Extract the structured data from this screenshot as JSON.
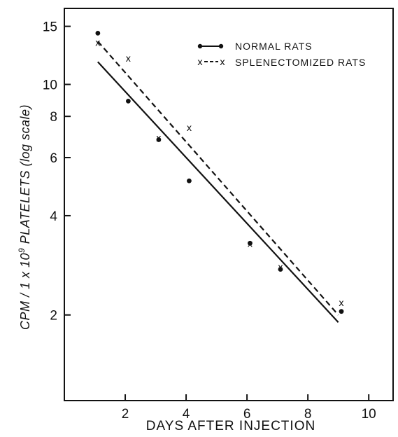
{
  "chart_data": {
    "type": "scatter",
    "title": "",
    "xlabel": "DAYS AFTER INJECTION",
    "ylabel": "CPM / 1 x 10^9 PLATELETS  (log scale)",
    "ylabel_parts": {
      "pre": "CPM / 1 x 10",
      "sup": "9",
      "post": " PLATELETS  (log scale)"
    },
    "yscale": "log",
    "xlim": [
      0,
      10.8
    ],
    "ylim": [
      1.1,
      17
    ],
    "x_ticks": [
      2,
      4,
      6,
      8,
      10
    ],
    "x_tick_labels": [
      "2",
      "4",
      "6",
      "8",
      "10"
    ],
    "y_ticks": [
      2,
      4,
      6,
      8,
      10,
      15
    ],
    "y_tick_labels": [
      "2",
      "4",
      "6",
      "8",
      "10",
      "15"
    ],
    "grid": false,
    "legend_position": "top-right",
    "series": [
      {
        "name": "NORMAL RATS",
        "legend_label": "NORMAL RATS",
        "marker": "dot",
        "line_style": "solid",
        "color": "#111111",
        "points": [
          {
            "x": 1.1,
            "y": 14.3
          },
          {
            "x": 2.1,
            "y": 8.9
          },
          {
            "x": 3.1,
            "y": 6.8
          },
          {
            "x": 4.1,
            "y": 5.1
          },
          {
            "x": 6.1,
            "y": 3.3
          },
          {
            "x": 7.1,
            "y": 2.75
          },
          {
            "x": 9.1,
            "y": 2.05
          }
        ],
        "fit": [
          {
            "x": 1.1,
            "y": 11.7
          },
          {
            "x": 9.0,
            "y": 1.9
          }
        ]
      },
      {
        "name": "SPLENECTOMIZED RATS",
        "legend_label": "SPLENECTOMIZED RATS",
        "marker": "x",
        "line_style": "dashed",
        "color": "#111111",
        "points": [
          {
            "x": 1.1,
            "y": 13.4
          },
          {
            "x": 2.1,
            "y": 12.0
          },
          {
            "x": 3.1,
            "y": 6.9
          },
          {
            "x": 4.1,
            "y": 7.4
          },
          {
            "x": 6.1,
            "y": 3.3
          },
          {
            "x": 7.1,
            "y": 2.8
          },
          {
            "x": 9.1,
            "y": 2.18
          }
        ],
        "fit": [
          {
            "x": 1.1,
            "y": 13.5
          },
          {
            "x": 9.0,
            "y": 2.0
          }
        ]
      }
    ]
  }
}
